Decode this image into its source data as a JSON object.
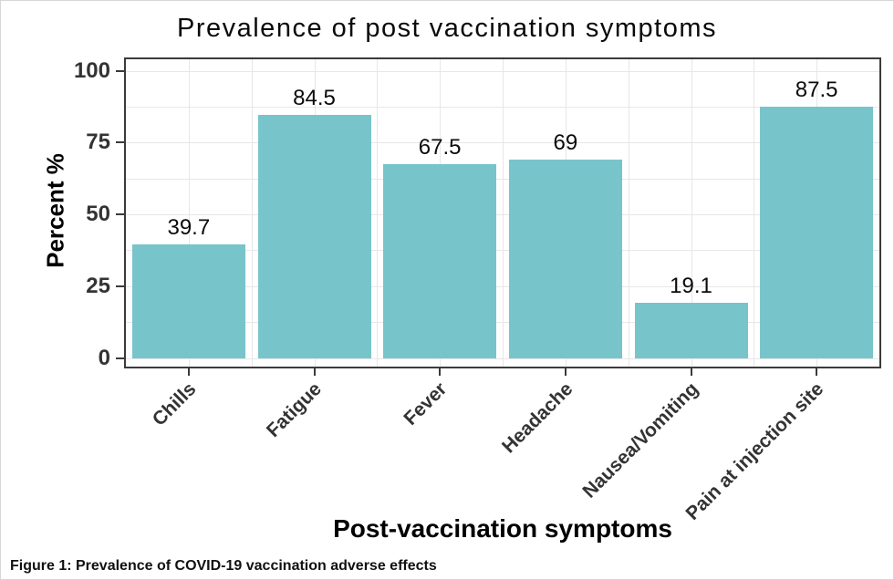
{
  "figure": {
    "title": "Prevalence of post vaccination symptoms",
    "caption": "Figure 1: Prevalence of COVID-19 vaccination adverse effects"
  },
  "chart_data": {
    "type": "bar",
    "title": "Prevalence of post vaccination symptoms",
    "categories": [
      "Chills",
      "Fatigue",
      "Fever",
      "Headache",
      "Nausea/Vomiting",
      "Pain at injection site"
    ],
    "values": [
      39.7,
      84.5,
      67.5,
      69,
      19.1,
      87.5
    ],
    "value_labels": [
      "39.7",
      "84.5",
      "67.5",
      "69",
      "19.1",
      "87.5"
    ],
    "xlabel": "Post-vaccination symptoms",
    "ylabel": "Percent %",
    "ylim": [
      0,
      100
    ],
    "yticks": [
      0,
      25,
      50,
      75,
      100
    ],
    "ytick_labels": [
      "0",
      "25",
      "50",
      "75",
      "100"
    ],
    "minor_grid_step": 12.5,
    "grid": true,
    "legend": "none",
    "bar_color": "#78c4cb",
    "grid_color": "#e7e7e7",
    "axis_text_color": "#333333",
    "panel_border_color": "#3b3b3b"
  }
}
